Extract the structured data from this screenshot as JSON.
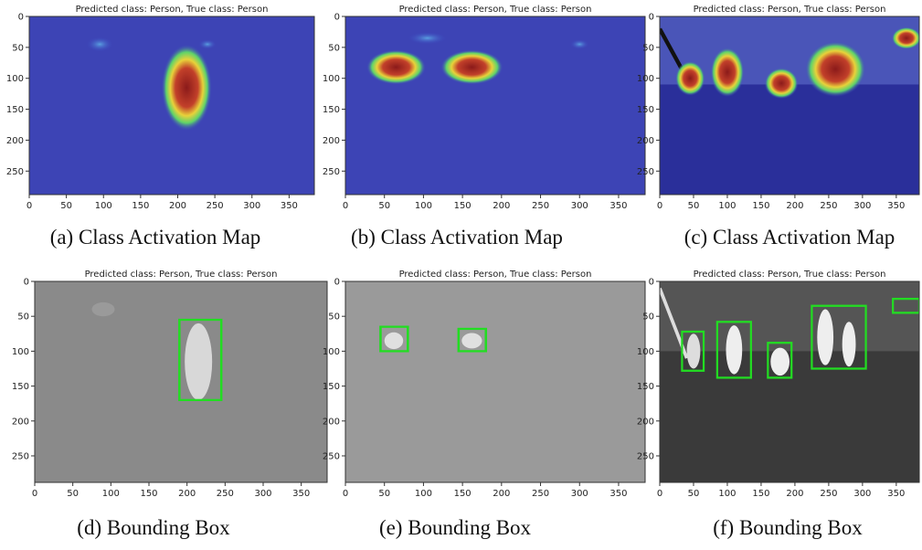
{
  "axis": {
    "xlim": [
      0,
      384
    ],
    "ylim": [
      0,
      288
    ],
    "xticks": [
      0,
      50,
      100,
      150,
      200,
      250,
      300,
      350
    ],
    "yticks": [
      0,
      50,
      100,
      150,
      200,
      250
    ]
  },
  "panels": [
    {
      "title": "Predicted class: Person, True class: Person",
      "caption": "(a) Class Activation Map"
    },
    {
      "title": "Predicted class: Person, True class: Person",
      "caption": "(b) Class Activation Map"
    },
    {
      "title": "Predicted class: Person, True class: Person",
      "caption": "(c) Class Activation Map"
    },
    {
      "title": "Predicted class: Person, True class: Person",
      "caption": "(d) Bounding Box"
    },
    {
      "title": "Predicted class: Person, True class: Person",
      "caption": "(e) Bounding Box"
    },
    {
      "title": "Predicted class: Person, True class: Person",
      "caption": "(f) Bounding Box"
    }
  ]
}
